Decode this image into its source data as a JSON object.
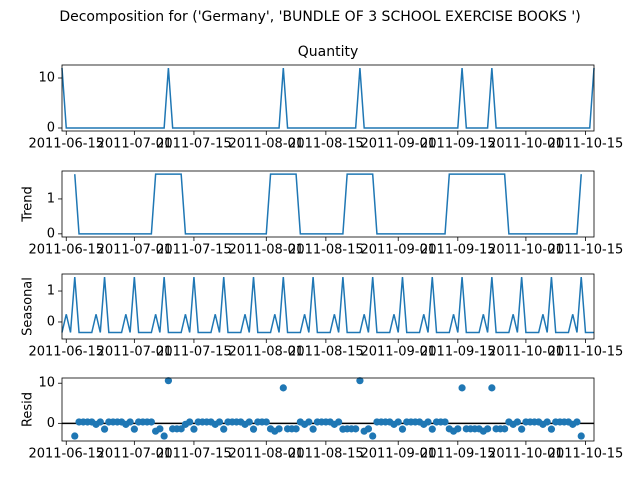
{
  "chart_data": {
    "type": "decomposition",
    "title": "Decomposition for ('Germany', 'BUNDLE OF 3 SCHOOL EXERCISE BOOKS  ')",
    "x": [
      "2011-06-14",
      "2011-06-15",
      "2011-06-16",
      "2011-06-17",
      "2011-06-18",
      "2011-06-19",
      "2011-06-20",
      "2011-06-21",
      "2011-06-22",
      "2011-06-23",
      "2011-06-24",
      "2011-06-25",
      "2011-06-26",
      "2011-06-27",
      "2011-06-28",
      "2011-06-29",
      "2011-06-30",
      "2011-07-01",
      "2011-07-02",
      "2011-07-03",
      "2011-07-04",
      "2011-07-05",
      "2011-07-06",
      "2011-07-07",
      "2011-07-08",
      "2011-07-09",
      "2011-07-10",
      "2011-07-11",
      "2011-07-12",
      "2011-07-13",
      "2011-07-14",
      "2011-07-15",
      "2011-07-16",
      "2011-07-17",
      "2011-07-18",
      "2011-07-19",
      "2011-07-20",
      "2011-07-21",
      "2011-07-22",
      "2011-07-23",
      "2011-07-24",
      "2011-07-25",
      "2011-07-26",
      "2011-07-27",
      "2011-07-28",
      "2011-07-29",
      "2011-07-30",
      "2011-07-31",
      "2011-08-01",
      "2011-08-02",
      "2011-08-03",
      "2011-08-04",
      "2011-08-05",
      "2011-08-06",
      "2011-08-07",
      "2011-08-08",
      "2011-08-09",
      "2011-08-10",
      "2011-08-11",
      "2011-08-12",
      "2011-08-13",
      "2011-08-14",
      "2011-08-15",
      "2011-08-16",
      "2011-08-17",
      "2011-08-18",
      "2011-08-19",
      "2011-08-20",
      "2011-08-21",
      "2011-08-22",
      "2011-08-23",
      "2011-08-24",
      "2011-08-25",
      "2011-08-26",
      "2011-08-27",
      "2011-08-28",
      "2011-08-29",
      "2011-08-30",
      "2011-08-31",
      "2011-09-01",
      "2011-09-02",
      "2011-09-03",
      "2011-09-04",
      "2011-09-05",
      "2011-09-06",
      "2011-09-07",
      "2011-09-08",
      "2011-09-09",
      "2011-09-10",
      "2011-09-11",
      "2011-09-12",
      "2011-09-13",
      "2011-09-14",
      "2011-09-15",
      "2011-09-16",
      "2011-09-17",
      "2011-09-18",
      "2011-09-19",
      "2011-09-20",
      "2011-09-21",
      "2011-09-22",
      "2011-09-23",
      "2011-09-24",
      "2011-09-25",
      "2011-09-26",
      "2011-09-27",
      "2011-09-28",
      "2011-09-29",
      "2011-09-30",
      "2011-10-01",
      "2011-10-02",
      "2011-10-03",
      "2011-10-04",
      "2011-10-05",
      "2011-10-06",
      "2011-10-07",
      "2011-10-08",
      "2011-10-09",
      "2011-10-10",
      "2011-10-11",
      "2011-10-12",
      "2011-10-13",
      "2011-10-14",
      "2011-10-15",
      "2011-10-16",
      "2011-10-17"
    ],
    "xlim": [
      "2011-06-14",
      "2011-10-17"
    ],
    "xticks": [
      "2011-06-15",
      "2011-07-01",
      "2011-07-15",
      "2011-08-01",
      "2011-08-15",
      "2011-09-01",
      "2011-09-15",
      "2011-10-01",
      "2011-10-15"
    ],
    "panels": [
      {
        "type": "line",
        "title": "Quantity",
        "color": "#1f77b4",
        "ylim": [
          -0.6,
          12.6
        ],
        "yticks": [
          0,
          10
        ],
        "values": [
          12,
          0,
          0,
          0,
          0,
          0,
          0,
          0,
          0,
          0,
          0,
          0,
          0,
          0,
          0,
          0,
          0,
          0,
          0,
          0,
          0,
          0,
          0,
          0,
          0,
          12,
          0,
          0,
          0,
          0,
          0,
          0,
          0,
          0,
          0,
          0,
          0,
          0,
          0,
          0,
          0,
          0,
          0,
          0,
          0,
          0,
          0,
          0,
          0,
          0,
          0,
          0,
          12,
          0,
          0,
          0,
          0,
          0,
          0,
          0,
          0,
          0,
          0,
          0,
          0,
          0,
          0,
          0,
          0,
          0,
          12,
          0,
          0,
          0,
          0,
          0,
          0,
          0,
          0,
          0,
          0,
          0,
          0,
          0,
          0,
          0,
          0,
          0,
          0,
          0,
          0,
          0,
          0,
          0,
          12,
          0,
          0,
          0,
          0,
          0,
          0,
          12,
          0,
          0,
          0,
          0,
          0,
          0,
          0,
          0,
          0,
          0,
          0,
          0,
          0,
          0,
          0,
          0,
          0,
          0,
          0,
          0,
          0,
          0,
          0,
          12
        ]
      },
      {
        "type": "line",
        "ylabel": "Trend",
        "color": "#1f77b4",
        "ylim": [
          -0.09,
          1.8
        ],
        "yticks": [
          0,
          1
        ],
        "values": [
          null,
          null,
          null,
          1.71,
          0,
          0,
          0,
          0,
          0,
          0,
          0,
          0,
          0,
          0,
          0,
          0,
          0,
          0,
          0,
          0,
          0,
          0,
          1.71,
          1.71,
          1.71,
          1.71,
          1.71,
          1.71,
          1.71,
          0,
          0,
          0,
          0,
          0,
          0,
          0,
          0,
          0,
          0,
          0,
          0,
          0,
          0,
          0,
          0,
          0,
          0,
          0,
          0,
          1.71,
          1.71,
          1.71,
          1.71,
          1.71,
          1.71,
          1.71,
          0,
          0,
          0,
          0,
          0,
          0,
          0,
          0,
          0,
          0,
          0,
          1.71,
          1.71,
          1.71,
          1.71,
          1.71,
          1.71,
          1.71,
          0,
          0,
          0,
          0,
          0,
          0,
          0,
          0,
          0,
          0,
          0,
          0,
          0,
          0,
          0,
          0,
          0,
          1.71,
          1.71,
          1.71,
          1.71,
          1.71,
          1.71,
          1.71,
          1.71,
          1.71,
          1.71,
          1.71,
          1.71,
          1.71,
          1.71,
          0,
          0,
          0,
          0,
          0,
          0,
          0,
          0,
          0,
          0,
          0,
          0,
          0,
          0,
          0,
          0,
          0,
          1.71,
          null,
          null,
          null
        ]
      },
      {
        "type": "line",
        "ylabel": "Seasonal",
        "color": "#1f77b4",
        "ylim": [
          -0.55,
          1.55
        ],
        "yticks": [
          0,
          1
        ],
        "values": [
          -0.34,
          0.25,
          -0.34,
          1.45,
          -0.34,
          -0.34,
          -0.34,
          -0.34,
          0.25,
          -0.34,
          1.45,
          -0.34,
          -0.34,
          -0.34,
          -0.34,
          0.25,
          -0.34,
          1.45,
          -0.34,
          -0.34,
          -0.34,
          -0.34,
          0.25,
          -0.34,
          1.45,
          -0.34,
          -0.34,
          -0.34,
          -0.34,
          0.25,
          -0.34,
          1.45,
          -0.34,
          -0.34,
          -0.34,
          -0.34,
          0.25,
          -0.34,
          1.45,
          -0.34,
          -0.34,
          -0.34,
          -0.34,
          0.25,
          -0.34,
          1.45,
          -0.34,
          -0.34,
          -0.34,
          -0.34,
          0.25,
          -0.34,
          1.45,
          -0.34,
          -0.34,
          -0.34,
          -0.34,
          0.25,
          -0.34,
          1.45,
          -0.34,
          -0.34,
          -0.34,
          -0.34,
          0.25,
          -0.34,
          1.45,
          -0.34,
          -0.34,
          -0.34,
          -0.34,
          0.25,
          -0.34,
          1.45,
          -0.34,
          -0.34,
          -0.34,
          -0.34,
          0.25,
          -0.34,
          1.45,
          -0.34,
          -0.34,
          -0.34,
          -0.34,
          0.25,
          -0.34,
          1.45,
          -0.34,
          -0.34,
          -0.34,
          -0.34,
          0.25,
          -0.34,
          1.45,
          -0.34,
          -0.34,
          -0.34,
          -0.34,
          0.25,
          -0.34,
          1.45,
          -0.34,
          -0.34,
          -0.34,
          -0.34,
          0.25,
          -0.34,
          1.45,
          -0.34,
          -0.34,
          -0.34,
          -0.34,
          0.25,
          -0.34,
          1.45,
          -0.34,
          -0.34,
          -0.34,
          -0.34,
          0.25,
          -0.34,
          1.45,
          -0.34,
          -0.34,
          -0.34
        ]
      },
      {
        "type": "scatter",
        "ylabel": "Resid",
        "color": "#1f77b4",
        "ylim": [
          -4.4,
          11.3
        ],
        "yticks": [
          0,
          10
        ],
        "zero_line": true,
        "values": [
          null,
          null,
          null,
          -3.16,
          0.34,
          0.34,
          0.34,
          0.34,
          -0.25,
          0.34,
          -1.45,
          0.34,
          0.34,
          0.34,
          0.34,
          -0.25,
          0.34,
          -1.45,
          0.34,
          0.34,
          0.34,
          0.34,
          -1.96,
          -1.37,
          -3.16,
          10.63,
          -1.37,
          -1.37,
          -1.37,
          -0.25,
          0.34,
          -1.45,
          0.34,
          0.34,
          0.34,
          0.34,
          -0.25,
          0.34,
          -1.45,
          0.34,
          0.34,
          0.34,
          0.34,
          -0.25,
          0.34,
          -1.45,
          0.34,
          0.34,
          0.34,
          -1.37,
          -1.96,
          -1.37,
          8.84,
          -1.37,
          -1.37,
          -1.37,
          0.34,
          -0.25,
          0.34,
          -1.45,
          0.34,
          0.34,
          0.34,
          0.34,
          -0.25,
          0.34,
          -1.45,
          -1.37,
          -1.37,
          -1.37,
          10.63,
          -1.96,
          -1.37,
          -3.16,
          0.34,
          0.34,
          0.34,
          0.34,
          -0.25,
          0.34,
          -1.45,
          0.34,
          0.34,
          0.34,
          0.34,
          -0.25,
          0.34,
          -1.45,
          0.34,
          0.34,
          0.34,
          -1.37,
          -1.96,
          -1.37,
          8.84,
          -1.37,
          -1.37,
          -1.37,
          -1.37,
          -1.96,
          -1.37,
          8.84,
          -1.37,
          -1.37,
          -1.37,
          0.34,
          -0.25,
          0.34,
          -1.45,
          0.34,
          0.34,
          0.34,
          0.34,
          -0.25,
          0.34,
          -1.45,
          0.34,
          0.34,
          0.34,
          0.34,
          -0.25,
          0.34,
          -3.16,
          null,
          null,
          null
        ]
      }
    ]
  }
}
